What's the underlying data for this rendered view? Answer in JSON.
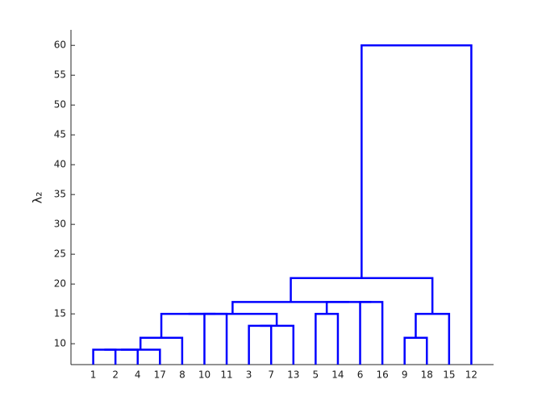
{
  "chart_data": {
    "type": "dendrogram",
    "ylabel": "λ₂",
    "categories": [
      "1",
      "2",
      "4",
      "17",
      "8",
      "10",
      "11",
      "3",
      "7",
      "13",
      "5",
      "14",
      "6",
      "16",
      "9",
      "18",
      "15",
      "12"
    ],
    "links": [
      {
        "children": [
          0,
          1
        ],
        "height": 9
      },
      {
        "children": [
          18,
          2
        ],
        "height": 9
      },
      {
        "children": [
          19,
          3
        ],
        "height": 9
      },
      {
        "children": [
          20,
          4
        ],
        "height": 11
      },
      {
        "children": [
          7,
          8
        ],
        "height": 13
      },
      {
        "children": [
          22,
          9
        ],
        "height": 13
      },
      {
        "children": [
          5,
          6
        ],
        "height": 15
      },
      {
        "children": [
          21,
          24
        ],
        "height": 15
      },
      {
        "children": [
          25,
          23
        ],
        "height": 15
      },
      {
        "children": [
          10,
          11
        ],
        "height": 15
      },
      {
        "children": [
          12,
          13
        ],
        "height": 17
      },
      {
        "children": [
          27,
          28
        ],
        "height": 17
      },
      {
        "children": [
          26,
          29
        ],
        "height": 17
      },
      {
        "children": [
          14,
          15
        ],
        "height": 11
      },
      {
        "children": [
          31,
          16
        ],
        "height": 15
      },
      {
        "children": [
          30,
          32
        ],
        "height": 21
      },
      {
        "children": [
          33,
          17
        ],
        "height": 60
      }
    ],
    "color": "#0000ff",
    "ylim": [
      6.5,
      62.6
    ],
    "yticks": [
      10,
      15,
      20,
      25,
      30,
      35,
      40,
      45,
      50,
      55,
      60
    ]
  }
}
